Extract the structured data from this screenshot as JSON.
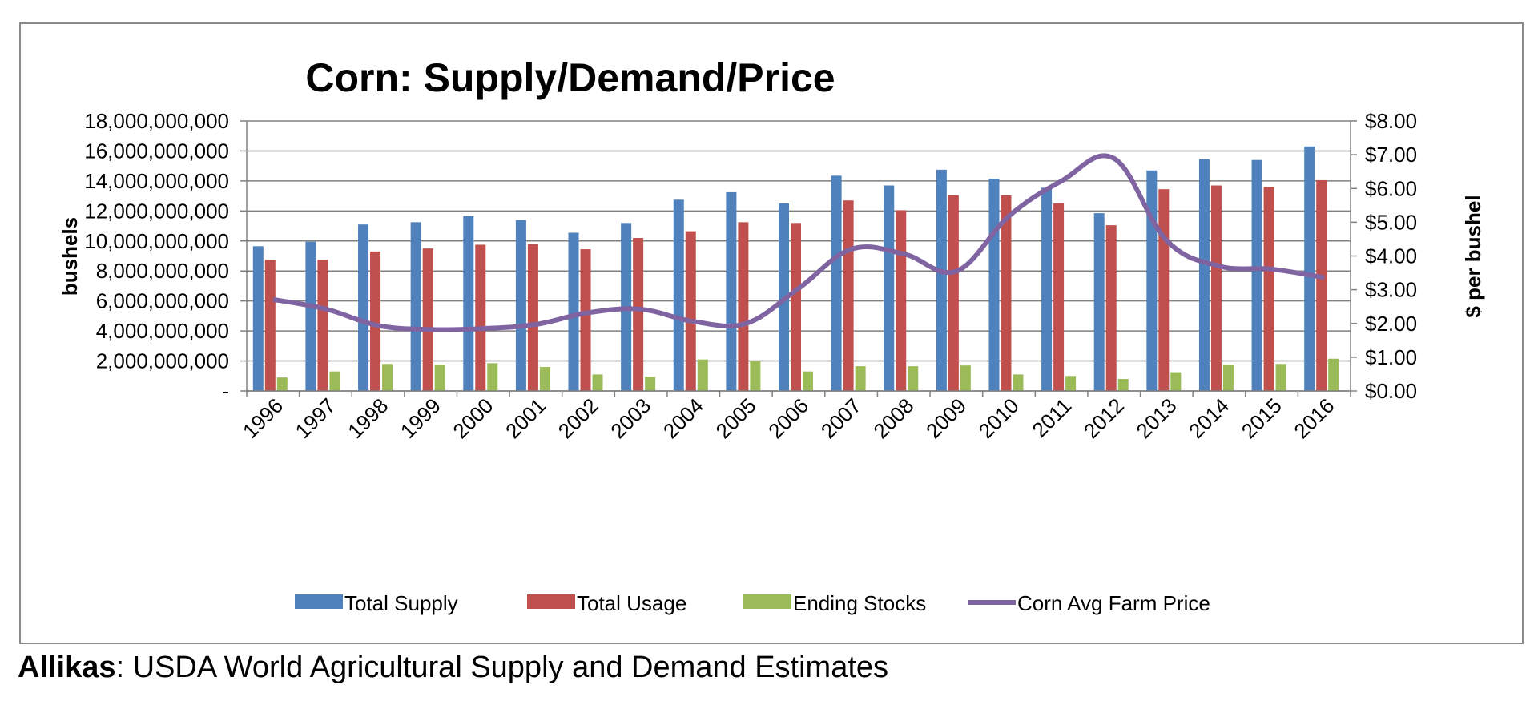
{
  "chart_data": {
    "type": "bar",
    "title": "Corn:  Supply/Demand/Price",
    "ylabel": "bushels",
    "y2label": "$ per bushel",
    "categories": [
      "1996",
      "1997",
      "1998",
      "1999",
      "2000",
      "2001",
      "2002",
      "2003",
      "2004",
      "2005",
      "2006",
      "2007",
      "2008",
      "2009",
      "2010",
      "2011",
      "2012",
      "2013",
      "2014",
      "2015",
      "2016"
    ],
    "ylim": [
      0,
      18000000000
    ],
    "y2lim": [
      0,
      8
    ],
    "yticks": [
      "-",
      "2,000,000,000",
      "4,000,000,000",
      "6,000,000,000",
      "8,000,000,000",
      "10,000,000,000",
      "12,000,000,000",
      "14,000,000,000",
      "16,000,000,000",
      "18,000,000,000"
    ],
    "y2ticks": [
      "$0.00",
      "$1.00",
      "$2.00",
      "$3.00",
      "$4.00",
      "$5.00",
      "$6.00",
      "$7.00",
      "$8.00"
    ],
    "grid": true,
    "legend_position": "bottom",
    "series": [
      {
        "name": "Total Supply",
        "type": "bar",
        "axis": "left",
        "color": "#4f81bd",
        "values": [
          9650000000,
          9950000000,
          11100000000,
          11250000000,
          11650000000,
          11400000000,
          10550000000,
          11200000000,
          12750000000,
          13250000000,
          12500000000,
          14350000000,
          13700000000,
          14750000000,
          14150000000,
          13550000000,
          11850000000,
          14700000000,
          15450000000,
          15400000000,
          16300000000
        ]
      },
      {
        "name": "Total Usage",
        "type": "bar",
        "axis": "left",
        "color": "#c0504d",
        "values": [
          8750000000,
          8750000000,
          9300000000,
          9500000000,
          9750000000,
          9800000000,
          9450000000,
          10200000000,
          10650000000,
          11250000000,
          11200000000,
          12700000000,
          12050000000,
          13050000000,
          13050000000,
          12500000000,
          11050000000,
          13450000000,
          13700000000,
          13600000000,
          14050000000
        ]
      },
      {
        "name": "Ending Stocks",
        "type": "bar",
        "axis": "left",
        "color": "#9bbb59",
        "values": [
          900000000,
          1300000000,
          1800000000,
          1750000000,
          1850000000,
          1600000000,
          1100000000,
          950000000,
          2100000000,
          2000000000,
          1300000000,
          1650000000,
          1650000000,
          1700000000,
          1100000000,
          1000000000,
          800000000,
          1250000000,
          1750000000,
          1800000000,
          2150000000
        ]
      },
      {
        "name": "Corn Avg Farm Price",
        "type": "line",
        "axis": "right",
        "color": "#8064a2",
        "values": [
          2.71,
          2.43,
          1.94,
          1.82,
          1.85,
          1.97,
          2.32,
          2.42,
          2.06,
          2.0,
          3.04,
          4.2,
          4.06,
          3.55,
          5.18,
          6.22,
          6.89,
          4.46,
          3.7,
          3.61,
          3.36
        ]
      }
    ]
  },
  "source": {
    "label": "Allikas",
    "text": ": USDA World Agricultural Supply and Demand Estimates"
  }
}
